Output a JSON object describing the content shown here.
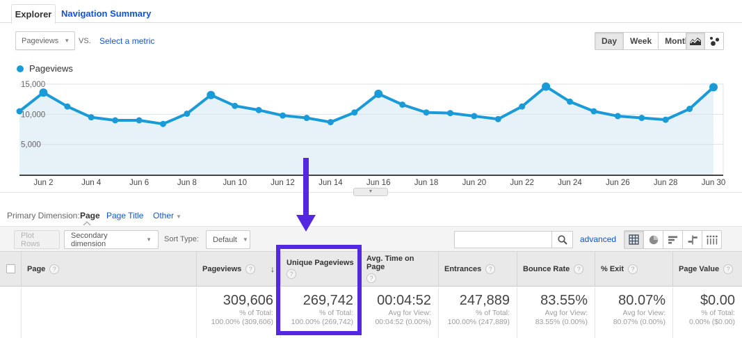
{
  "tabs": {
    "explorer": "Explorer",
    "navigation_summary": "Navigation Summary"
  },
  "controls": {
    "metric_selector_value": "Pageviews",
    "vs_label": "VS.",
    "select_metric_label": "Select a metric",
    "granularity": [
      "Day",
      "Week",
      "Month"
    ],
    "active_granularity": "Day",
    "chart_type_buttons": [
      "line-chart",
      "motion-chart"
    ],
    "active_chart_type": "line-chart"
  },
  "legend": {
    "label": "Pageviews"
  },
  "chart_data": {
    "type": "line",
    "series_name": "Pageviews",
    "x": [
      "Jun 1",
      "Jun 2",
      "Jun 3",
      "Jun 4",
      "Jun 5",
      "Jun 6",
      "Jun 7",
      "Jun 8",
      "Jun 9",
      "Jun 10",
      "Jun 11",
      "Jun 12",
      "Jun 13",
      "Jun 14",
      "Jun 15",
      "Jun 16",
      "Jun 17",
      "Jun 18",
      "Jun 19",
      "Jun 20",
      "Jun 21",
      "Jun 22",
      "Jun 23",
      "Jun 24",
      "Jun 25",
      "Jun 26",
      "Jun 27",
      "Jun 28",
      "Jun 29",
      "Jun 30"
    ],
    "values": [
      10500,
      13600,
      11300,
      9500,
      9000,
      9000,
      8400,
      10100,
      13200,
      11400,
      10700,
      9800,
      9400,
      8700,
      10300,
      13400,
      11600,
      10300,
      10200,
      9700,
      9200,
      11300,
      14600,
      12100,
      10500,
      9700,
      9400,
      9100,
      10900,
      14500
    ],
    "tick_labels": [
      "Jun 2",
      "Jun 4",
      "Jun 6",
      "Jun 8",
      "Jun 10",
      "Jun 12",
      "Jun 14",
      "Jun 16",
      "Jun 18",
      "Jun 20",
      "Jun 22",
      "Jun 24",
      "Jun 26",
      "Jun 28",
      "Jun 30"
    ],
    "tick_indices": [
      1,
      3,
      5,
      7,
      9,
      11,
      13,
      15,
      17,
      19,
      21,
      23,
      25,
      27,
      29
    ],
    "ylim": [
      0,
      15000
    ],
    "gridlines": [
      {
        "value": 5000,
        "label": "5,000"
      },
      {
        "value": 10000,
        "label": "10,000"
      },
      {
        "value": 15000,
        "label": "15,000"
      }
    ],
    "grid": true,
    "legend_position": "top-left",
    "line_color": "#1a9bd8",
    "fill_color": "#e7f1f8"
  },
  "dimension_bar": {
    "label": "Primary Dimension:",
    "active": "Page",
    "option2": "Page Title",
    "option3": "Other"
  },
  "toolbar": {
    "plot_rows": "Plot Rows",
    "secondary_dimension": "Secondary dimension",
    "sort_type_label": "Sort Type:",
    "sort_type_value": "Default",
    "search_value": "",
    "search_placeholder": "",
    "advanced": "advanced",
    "view_buttons": [
      "table",
      "percentage",
      "performance",
      "comparison",
      "pivot"
    ],
    "active_view": "table"
  },
  "icons": {
    "caret_down": "▼",
    "sort_desc": "↓",
    "help": "?",
    "expander_caret": "▼"
  },
  "table": {
    "headers": [
      {
        "label": "Page"
      },
      {
        "label": "Pageviews",
        "sorted": "desc"
      },
      {
        "label": "Unique Pageviews"
      },
      {
        "label": "Avg. Time on Page"
      },
      {
        "label": "Entrances"
      },
      {
        "label": "Bounce Rate"
      },
      {
        "label": "% Exit"
      },
      {
        "label": "Page Value"
      }
    ],
    "row": {
      "page": "",
      "metrics": [
        {
          "value": "309,606",
          "sub1": "% of Total:",
          "sub2": "100.00% (309,606)"
        },
        {
          "value": "269,742",
          "sub1": "% of Total:",
          "sub2": "100.00% (269,742)"
        },
        {
          "value": "00:04:52",
          "sub1": "Avg for View:",
          "sub2": "00:04:52 (0.00%)"
        },
        {
          "value": "247,889",
          "sub1": "% of Total:",
          "sub2": "100.00% (247,889)"
        },
        {
          "value": "83.55%",
          "sub1": "Avg for View:",
          "sub2": "83.55% (0.00%)"
        },
        {
          "value": "80.07%",
          "sub1": "Avg for View:",
          "sub2": "80.07% (0.00%)"
        },
        {
          "value": "$0.00",
          "sub1": "% of Total:",
          "sub2": "0.00% ($0.00)"
        }
      ]
    }
  },
  "annotation": {
    "color": "#5328e0",
    "target": "Unique Pageviews column"
  }
}
